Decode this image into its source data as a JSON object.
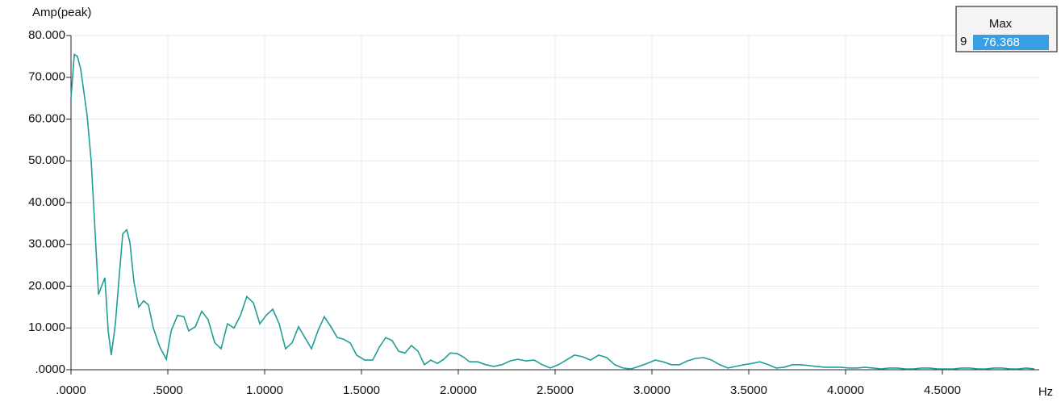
{
  "chart_data": {
    "type": "line",
    "y_axis_label": "Amp(peak)",
    "x_axis_label": "Hz",
    "grid": true,
    "xlim": [
      0,
      5
    ],
    "ylim": [
      0,
      80
    ],
    "xticks": [
      {
        "value": 0,
        "label": ".0000"
      },
      {
        "value": 0.5,
        "label": ".5000"
      },
      {
        "value": 1,
        "label": "1.0000"
      },
      {
        "value": 1.5,
        "label": "1.5000"
      },
      {
        "value": 2,
        "label": "2.0000"
      },
      {
        "value": 2.5,
        "label": "2.5000"
      },
      {
        "value": 3,
        "label": "3.0000"
      },
      {
        "value": 3.5,
        "label": "3.5000"
      },
      {
        "value": 4,
        "label": "4.0000"
      },
      {
        "value": 4.5,
        "label": "4.5000"
      }
    ],
    "yticks": [
      {
        "value": 0,
        "label": ".0000"
      },
      {
        "value": 10,
        "label": "10.000"
      },
      {
        "value": 20,
        "label": "20.000"
      },
      {
        "value": 30,
        "label": "30.000"
      },
      {
        "value": 40,
        "label": "40.000"
      },
      {
        "value": 50,
        "label": "50.000"
      },
      {
        "value": 60,
        "label": "60.000"
      },
      {
        "value": 70,
        "label": "70.000"
      },
      {
        "value": 80,
        "label": "80.000"
      }
    ],
    "series": [
      {
        "color": "#1f9e96",
        "x": [
          0,
          0.017,
          0.033,
          0.05,
          0.083,
          0.104,
          0.125,
          0.142,
          0.158,
          0.175,
          0.192,
          0.208,
          0.229,
          0.25,
          0.267,
          0.288,
          0.304,
          0.325,
          0.35,
          0.375,
          0.4,
          0.425,
          0.458,
          0.492,
          0.517,
          0.55,
          0.583,
          0.608,
          0.642,
          0.675,
          0.708,
          0.742,
          0.775,
          0.808,
          0.842,
          0.875,
          0.908,
          0.942,
          0.975,
          1.008,
          1.042,
          1.075,
          1.108,
          1.142,
          1.175,
          1.208,
          1.242,
          1.275,
          1.308,
          1.342,
          1.375,
          1.408,
          1.442,
          1.475,
          1.517,
          1.558,
          1.592,
          1.625,
          1.658,
          1.692,
          1.725,
          1.758,
          1.792,
          1.825,
          1.858,
          1.892,
          1.925,
          1.958,
          1.992,
          2.025,
          2.058,
          2.1,
          2.142,
          2.183,
          2.225,
          2.267,
          2.308,
          2.35,
          2.392,
          2.433,
          2.475,
          2.517,
          2.558,
          2.6,
          2.642,
          2.683,
          2.725,
          2.767,
          2.808,
          2.85,
          2.892,
          2.933,
          2.975,
          3.017,
          3.058,
          3.1,
          3.142,
          3.183,
          3.225,
          3.267,
          3.308,
          3.35,
          3.392,
          3.433,
          3.475,
          3.517,
          3.558,
          3.6,
          3.642,
          3.683,
          3.725,
          3.767,
          3.808,
          3.85,
          3.892,
          3.933,
          3.975,
          4.017,
          4.058,
          4.1,
          4.142,
          4.183,
          4.225,
          4.267,
          4.308,
          4.35,
          4.392,
          4.433,
          4.475,
          4.517,
          4.558,
          4.6,
          4.642,
          4.683,
          4.725,
          4.767,
          4.808,
          4.85,
          4.892,
          4.933,
          4.975
        ],
        "values": [
          65,
          75.5,
          75,
          72,
          61,
          50,
          32.5,
          18,
          20,
          22,
          9.3,
          3.5,
          11,
          23,
          32.5,
          33.5,
          30.5,
          21,
          15,
          16.5,
          15.5,
          10,
          5.5,
          2.5,
          9.3,
          13,
          12.7,
          9.3,
          10.3,
          14,
          12,
          6.5,
          5,
          11,
          10,
          13,
          17.5,
          16,
          11,
          13,
          14.5,
          11,
          5,
          6.5,
          10.3,
          7.7,
          5,
          9.3,
          12.7,
          10.3,
          7.7,
          7.3,
          6.4,
          3.5,
          2.3,
          2.3,
          5.4,
          7.7,
          7,
          4.4,
          4,
          5.8,
          4.4,
          1.2,
          2.3,
          1.5,
          2.5,
          4,
          3.9,
          3.1,
          1.9,
          1.9,
          1.2,
          0.8,
          1.2,
          2.1,
          2.5,
          2.1,
          2.3,
          1.2,
          0.4,
          1.2,
          2.3,
          3.5,
          3.1,
          2.3,
          3.5,
          2.9,
          1.2,
          0.4,
          0.2,
          0.8,
          1.5,
          2.3,
          1.9,
          1.2,
          1.2,
          2.1,
          2.7,
          2.9,
          2.3,
          1.2,
          0.4,
          0.8,
          1.2,
          1.5,
          1.9,
          1.2,
          0.4,
          0.6,
          1.2,
          1.2,
          1,
          0.8,
          0.6,
          0.6,
          0.6,
          0.4,
          0.4,
          0.6,
          0.4,
          0.2,
          0.4,
          0.4,
          0.2,
          0.2,
          0.4,
          0.4,
          0.2,
          0.2,
          0.2,
          0.4,
          0.4,
          0.2,
          0.2,
          0.4,
          0.4,
          0.2,
          0.2,
          0.4,
          0.2
        ]
      }
    ],
    "max_panel": {
      "header": "Max",
      "index": "9",
      "value": "76.368"
    }
  }
}
